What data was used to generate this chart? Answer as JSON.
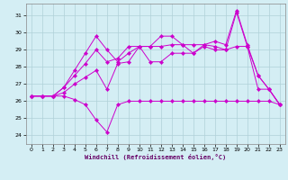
{
  "xlabel": "Windchill (Refroidissement éolien,°C)",
  "xlim": [
    -0.5,
    23.5
  ],
  "ylim": [
    23.5,
    31.7
  ],
  "yticks": [
    24,
    25,
    26,
    27,
    28,
    29,
    30,
    31
  ],
  "xticks": [
    0,
    1,
    2,
    3,
    4,
    5,
    6,
    7,
    8,
    9,
    10,
    11,
    12,
    13,
    14,
    15,
    16,
    17,
    18,
    19,
    20,
    21,
    22,
    23
  ],
  "bg_color": "#d4eef4",
  "grid_color": "#b0d0d8",
  "line_color": "#cc00cc",
  "lines": [
    [
      26.3,
      26.3,
      26.3,
      26.3,
      26.1,
      25.8,
      24.9,
      24.2,
      25.8,
      26.0,
      26.0,
      26.0,
      26.0,
      26.0,
      26.0,
      26.0,
      26.0,
      26.0,
      26.0,
      26.0,
      26.0,
      26.0,
      26.0,
      25.8
    ],
    [
      26.3,
      26.3,
      26.3,
      26.5,
      27.0,
      27.4,
      27.8,
      26.7,
      28.2,
      28.3,
      29.2,
      28.3,
      28.3,
      28.8,
      28.8,
      28.8,
      29.2,
      29.0,
      29.0,
      29.2,
      29.2,
      27.5,
      26.7,
      25.8
    ],
    [
      26.3,
      26.3,
      26.3,
      26.8,
      27.5,
      28.2,
      29.0,
      28.3,
      28.5,
      29.2,
      29.2,
      29.2,
      29.2,
      29.3,
      29.3,
      29.3,
      29.3,
      29.2,
      29.0,
      31.2,
      29.2,
      26.7,
      26.7,
      25.8
    ],
    [
      26.3,
      26.3,
      26.3,
      26.8,
      27.8,
      28.8,
      29.8,
      29.0,
      28.3,
      28.8,
      29.2,
      29.2,
      29.8,
      29.8,
      29.3,
      28.8,
      29.3,
      29.5,
      29.3,
      31.3,
      29.3,
      27.5,
      26.7,
      25.8
    ]
  ]
}
